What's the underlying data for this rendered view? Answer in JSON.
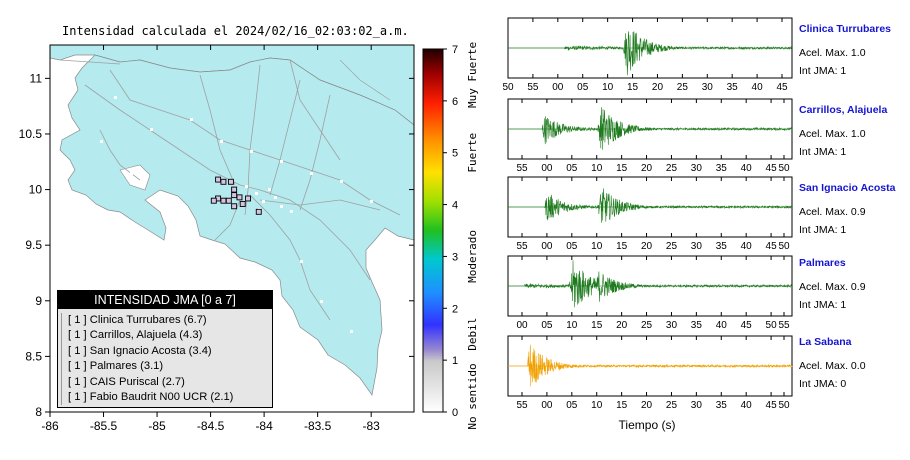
{
  "chart_data": [
    {
      "type": "heatmap",
      "title": "Intensidad calculada el 2024/02/16_02:03:02_a.m.",
      "x_ticks": [
        "-86",
        "-85.5",
        "-85",
        "-84.5",
        "-84",
        "-83.5",
        "-83"
      ],
      "y_ticks": [
        "11",
        "10.5",
        "10",
        "9.5",
        "9",
        "8.5",
        "8"
      ],
      "xlim": [
        -86,
        -82.6
      ],
      "ylim": [
        8,
        11.3
      ],
      "colorbar": {
        "ticks": [
          "0",
          "1",
          "2",
          "3",
          "4",
          "5",
          "6",
          "7"
        ],
        "range": [
          0,
          7
        ],
        "labels": [
          "No sentido",
          "Debil",
          "Moderado",
          "Fuerte",
          "Muy Fuerte"
        ]
      },
      "legend": {
        "title": "INTENSIDAD JMA [0 a 7]",
        "entries": [
          "[ 1 ]  Clinica Turrubares (6.7)",
          "[ 1 ]  Carrillos, Alajuela (4.3)",
          "[ 1 ]  San Ignacio Acosta (3.4)",
          "[ 1 ]  Palmares (3.1)",
          "[ 1 ]  CAIS Puriscal (2.7)",
          "[ 1 ]  Fabio Baudrit N00 UCR (2.1)"
        ]
      },
      "stations": [
        {
          "lon": -84.43,
          "lat": 10.09,
          "jma": 1
        },
        {
          "lon": -84.38,
          "lat": 10.07,
          "jma": 1
        },
        {
          "lon": -84.31,
          "lat": 10.07,
          "jma": 1
        },
        {
          "lon": -84.28,
          "lat": 10.0,
          "jma": 1
        },
        {
          "lon": -84.43,
          "lat": 9.92,
          "jma": 1
        },
        {
          "lon": -84.47,
          "lat": 9.9,
          "jma": 1
        },
        {
          "lon": -84.38,
          "lat": 9.9,
          "jma": 1
        },
        {
          "lon": -84.33,
          "lat": 9.9,
          "jma": 1
        },
        {
          "lon": -84.28,
          "lat": 9.95,
          "jma": 1
        },
        {
          "lon": -84.23,
          "lat": 9.93,
          "jma": 1
        },
        {
          "lon": -84.2,
          "lat": 9.87,
          "jma": 1
        },
        {
          "lon": -84.28,
          "lat": 9.85,
          "jma": 1
        },
        {
          "lon": -84.15,
          "lat": 9.92,
          "jma": 1
        },
        {
          "lon": -84.05,
          "lat": 9.8,
          "jma": 1
        }
      ]
    },
    {
      "type": "line",
      "xlabel": "Tiempo (s)",
      "traces": [
        {
          "name": "Clinica Turrubares",
          "accel": "Acel. Max. 1.0",
          "jma": "Int JMA: 1",
          "ticks": [
            "50",
            "55",
            "00",
            "05",
            "10",
            "15",
            "20",
            "25",
            "30",
            "35",
            "40",
            "45"
          ],
          "color": "#1d7a1d",
          "onset": 0.2,
          "bursts": [
            [
              0.42,
              1.0
            ]
          ]
        },
        {
          "name": "Carrillos, Alajuela",
          "accel": "Acel. Max. 1.0",
          "jma": "Int JMA: 1",
          "ticks": [
            "55",
            "00",
            "05",
            "10",
            "15",
            "20",
            "25",
            "30",
            "35",
            "40",
            "45",
            "50"
          ],
          "color": "#1d7a1d",
          "onset": 0.12,
          "bursts": [
            [
              0.13,
              0.55
            ],
            [
              0.33,
              0.9
            ]
          ]
        },
        {
          "name": "San Ignacio Acosta",
          "accel": "Acel. Max. 0.9",
          "jma": "Int JMA: 1",
          "ticks": [
            "55",
            "00",
            "05",
            "10",
            "15",
            "20",
            "25",
            "30",
            "35",
            "40",
            "45",
            "50"
          ],
          "color": "#1d7a1d",
          "onset": 0.13,
          "bursts": [
            [
              0.14,
              0.55
            ],
            [
              0.33,
              0.75
            ]
          ]
        },
        {
          "name": "Palmares",
          "accel": "Acel. Max. 0.9",
          "jma": "Int JMA: 1",
          "ticks": [
            "00",
            "05",
            "10",
            "15",
            "20",
            "25",
            "30",
            "35",
            "40",
            "45",
            "50",
            "55"
          ],
          "color": "#1d7a1d",
          "onset": 0.06,
          "bursts": [
            [
              0.23,
              1.0
            ],
            [
              0.32,
              0.6
            ]
          ]
        },
        {
          "name": "La Sabana",
          "accel": "Acel. Max. 0.0",
          "jma": "Int JMA: 0",
          "ticks": [
            "55",
            "00",
            "05",
            "10",
            "15",
            "20",
            "25",
            "30",
            "35",
            "40",
            "45",
            "50"
          ],
          "color": "#f0a000",
          "onset": 0.07,
          "bursts": [
            [
              0.075,
              0.9
            ]
          ]
        }
      ]
    }
  ]
}
